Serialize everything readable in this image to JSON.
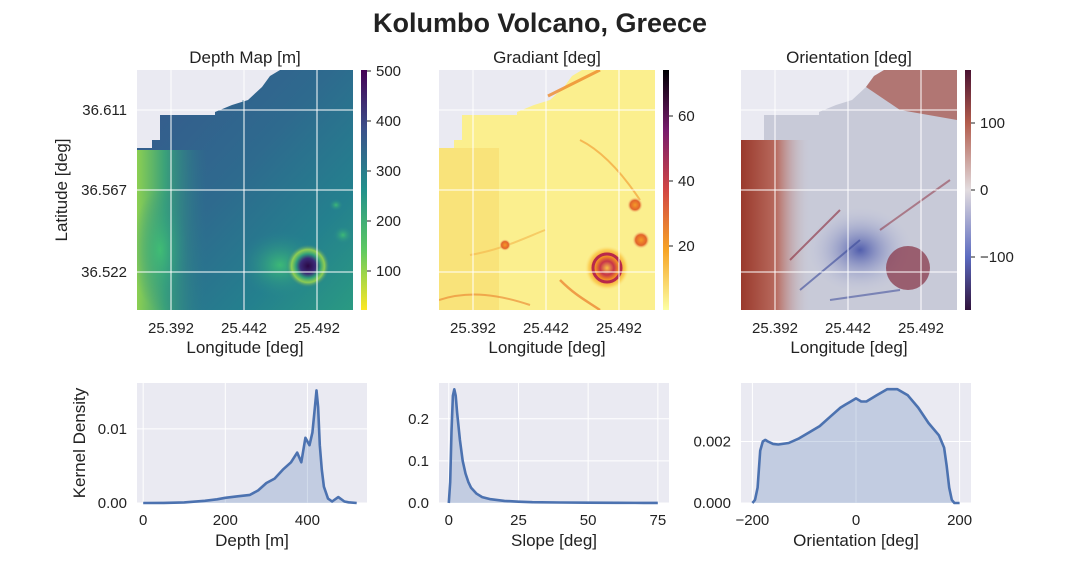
{
  "title": "Kolumbo Volcano, Greece",
  "chart_data": [
    {
      "type": "heatmap",
      "title": "Depth Map [m]",
      "xlabel": "Longitude [deg]",
      "ylabel": "Latitude [deg]",
      "x_ticks": [
        "25.392",
        "25.442",
        "25.492"
      ],
      "y_ticks": [
        "36.611",
        "36.567",
        "36.522"
      ],
      "colorbar_ticks": [
        "100",
        "200",
        "300",
        "400",
        "500"
      ],
      "colorbar_range": [
        20,
        500
      ],
      "colormap": "viridis (reversed)",
      "grid": true
    },
    {
      "type": "heatmap",
      "title": "Gradiant [deg]",
      "xlabel": "Longitude [deg]",
      "x_ticks": [
        "25.392",
        "25.442",
        "25.492"
      ],
      "colorbar_ticks": [
        "20",
        "40",
        "60"
      ],
      "colorbar_range": [
        0,
        75
      ],
      "colormap": "inferno (reversed)",
      "grid": true
    },
    {
      "type": "heatmap",
      "title": "Orientation [deg]",
      "xlabel": "Longitude [deg]",
      "x_ticks": [
        "25.392",
        "25.442",
        "25.492"
      ],
      "colorbar_ticks": [
        "−100",
        "0",
        "100"
      ],
      "colorbar_range": [
        -180,
        180
      ],
      "colormap": "twilight_shifted",
      "grid": true
    },
    {
      "type": "area",
      "xlabel": "Depth [m]",
      "ylabel": "Kernel Density",
      "xlim": [
        -15,
        545
      ],
      "ylim": [
        0,
        0.0162
      ],
      "x_ticks": [
        "0",
        "200",
        "400"
      ],
      "y_ticks": [
        "0.00",
        "0.01"
      ],
      "x": [
        0,
        50,
        100,
        150,
        180,
        200,
        230,
        260,
        280,
        300,
        320,
        340,
        360,
        375,
        385,
        395,
        405,
        412,
        418,
        422,
        426,
        430,
        435,
        440,
        450,
        460,
        475,
        490,
        500,
        520
      ],
      "y": [
        0,
        2e-05,
        8e-05,
        0.0003,
        0.0005,
        0.0007,
        0.0009,
        0.0011,
        0.0017,
        0.0027,
        0.0033,
        0.0045,
        0.0055,
        0.0068,
        0.0055,
        0.0088,
        0.0078,
        0.0095,
        0.0128,
        0.0152,
        0.013,
        0.0078,
        0.0045,
        0.0022,
        0.0006,
        0.0002,
        0.0008,
        0.0002,
        0.0001,
        0
      ],
      "grid": true
    },
    {
      "type": "area",
      "xlabel": "Slope [deg]",
      "xlim": [
        -3.5,
        79
      ],
      "ylim": [
        0,
        0.285
      ],
      "x_ticks": [
        "0",
        "25",
        "50",
        "75"
      ],
      "y_ticks": [
        "0.0",
        "0.1",
        "0.2"
      ],
      "x": [
        0,
        0.5,
        1,
        1.5,
        2,
        2.5,
        3,
        4,
        5,
        6,
        7,
        8,
        10,
        12,
        15,
        20,
        25,
        30,
        40,
        50,
        60,
        70,
        75
      ],
      "y": [
        0,
        0.05,
        0.17,
        0.255,
        0.27,
        0.255,
        0.215,
        0.15,
        0.1,
        0.07,
        0.05,
        0.036,
        0.022,
        0.014,
        0.009,
        0.005,
        0.003,
        0.002,
        0.0012,
        0.0008,
        0.0005,
        0.0003,
        0.0002
      ],
      "grid": true
    },
    {
      "type": "area",
      "xlabel": "Orientation [deg]",
      "xlim": [
        -222,
        222
      ],
      "ylim": [
        0,
        0.0039
      ],
      "x_ticks": [
        "−200",
        "0",
        "200"
      ],
      "y_ticks": [
        "0.000",
        "0.002"
      ],
      "x": [
        -200,
        -195,
        -190,
        -185,
        -180,
        -175,
        -170,
        -160,
        -150,
        -130,
        -110,
        -90,
        -70,
        -50,
        -30,
        -20,
        -10,
        0,
        10,
        20,
        40,
        60,
        80,
        100,
        120,
        140,
        160,
        170,
        175,
        180,
        185,
        190,
        200
      ],
      "y": [
        0,
        0.0001,
        0.0005,
        0.0017,
        0.002,
        0.00205,
        0.002,
        0.00192,
        0.0019,
        0.00195,
        0.0021,
        0.0023,
        0.0025,
        0.0028,
        0.0031,
        0.0032,
        0.0033,
        0.0034,
        0.0033,
        0.0033,
        0.0035,
        0.0037,
        0.0037,
        0.0035,
        0.0031,
        0.0026,
        0.0022,
        0.0018,
        0.0012,
        0.0005,
        0.0001,
        0,
        0
      ],
      "grid": true
    }
  ]
}
